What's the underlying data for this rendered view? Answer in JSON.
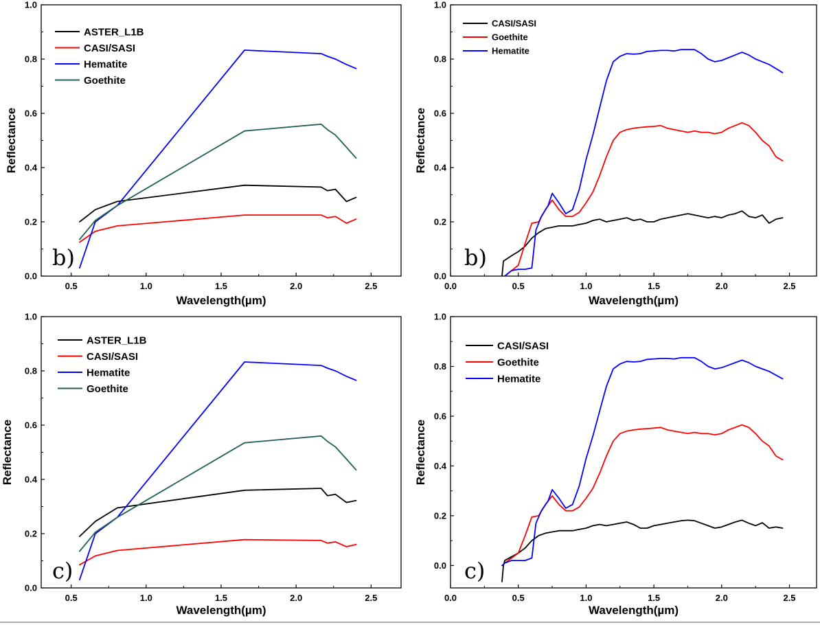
{
  "chart_data": [
    {
      "type": "line",
      "panel_label": "b)",
      "xlabel": "Wavelength(µm)",
      "ylabel": "Reflectance",
      "xlim": [
        0.3,
        2.7
      ],
      "ylim": [
        0.0,
        1.0
      ],
      "xticks": [
        "0.5",
        "1.0",
        "1.5",
        "2.0",
        "2.5"
      ],
      "yticks": [
        "0.0",
        "0.2",
        "0.4",
        "0.6",
        "0.8",
        "1.0"
      ],
      "grid": false,
      "legend": "top-left",
      "series": [
        {
          "name": "ASTER_L1B",
          "color": "#000000",
          "x": [
            0.556,
            0.661,
            0.807,
            1.656,
            2.167,
            2.209,
            2.262,
            2.336,
            2.4
          ],
          "y": [
            0.2,
            0.245,
            0.275,
            0.335,
            0.328,
            0.315,
            0.32,
            0.275,
            0.29
          ]
        },
        {
          "name": "CASI/SASI",
          "color": "#ff0000",
          "x": [
            0.556,
            0.661,
            0.807,
            1.656,
            2.167,
            2.209,
            2.262,
            2.336,
            2.4
          ],
          "y": [
            0.125,
            0.165,
            0.185,
            0.225,
            0.225,
            0.215,
            0.22,
            0.195,
            0.21
          ]
        },
        {
          "name": "Hematite",
          "color": "#0000ff",
          "x": [
            0.556,
            0.661,
            0.807,
            1.656,
            2.167,
            2.209,
            2.262,
            2.336,
            2.4
          ],
          "y": [
            0.03,
            0.2,
            0.26,
            0.833,
            0.82,
            0.81,
            0.8,
            0.78,
            0.765
          ]
        },
        {
          "name": "Goethite",
          "color": "#1f5f55",
          "x": [
            0.556,
            0.661,
            0.807,
            1.656,
            2.167,
            2.209,
            2.262,
            2.336,
            2.4
          ],
          "y": [
            0.135,
            0.205,
            0.26,
            0.535,
            0.56,
            0.54,
            0.52,
            0.475,
            0.435
          ]
        }
      ]
    },
    {
      "type": "line",
      "panel_label": "b)",
      "xlabel": "Wavelength(µm)",
      "ylabel": "Reflectance",
      "xlim": [
        0.0,
        2.7
      ],
      "ylim": [
        0.0,
        1.0
      ],
      "xticks": [
        "0.0",
        "0.5",
        "1.0",
        "1.5",
        "2.0",
        "2.5"
      ],
      "yticks": [
        "0.0",
        "0.2",
        "0.4",
        "0.6",
        "0.8",
        "1.0"
      ],
      "grid": false,
      "legend": "top-left",
      "series": [
        {
          "name": "CASI/SASI",
          "color": "#000000",
          "x": [
            0.38,
            0.39,
            0.45,
            0.5,
            0.55,
            0.6,
            0.65,
            0.7,
            0.75,
            0.8,
            0.85,
            0.9,
            0.95,
            1.0,
            1.05,
            1.1,
            1.15,
            1.2,
            1.25,
            1.3,
            1.35,
            1.4,
            1.45,
            1.5,
            1.55,
            1.6,
            1.65,
            1.7,
            1.75,
            1.8,
            1.85,
            1.9,
            1.95,
            2.0,
            2.05,
            2.1,
            2.15,
            2.2,
            2.25,
            2.3,
            2.35,
            2.4,
            2.45
          ],
          "y": [
            0.0,
            0.055,
            0.075,
            0.09,
            0.11,
            0.14,
            0.16,
            0.175,
            0.18,
            0.185,
            0.185,
            0.185,
            0.19,
            0.195,
            0.205,
            0.21,
            0.2,
            0.205,
            0.21,
            0.215,
            0.205,
            0.21,
            0.2,
            0.2,
            0.21,
            0.215,
            0.22,
            0.225,
            0.23,
            0.225,
            0.22,
            0.215,
            0.22,
            0.215,
            0.225,
            0.23,
            0.24,
            0.22,
            0.215,
            0.225,
            0.195,
            0.21,
            0.215
          ]
        },
        {
          "name": "Goethite",
          "color": "#ff0000",
          "x": [
            0.4,
            0.45,
            0.5,
            0.55,
            0.6,
            0.65,
            0.7,
            0.75,
            0.8,
            0.85,
            0.9,
            0.95,
            1.0,
            1.05,
            1.1,
            1.15,
            1.2,
            1.25,
            1.3,
            1.35,
            1.4,
            1.45,
            1.5,
            1.55,
            1.6,
            1.65,
            1.7,
            1.75,
            1.8,
            1.85,
            1.9,
            1.95,
            2.0,
            2.05,
            2.1,
            2.15,
            2.2,
            2.25,
            2.3,
            2.35,
            2.4,
            2.45
          ],
          "y": [
            0.0,
            0.02,
            0.04,
            0.12,
            0.195,
            0.2,
            0.245,
            0.28,
            0.245,
            0.22,
            0.22,
            0.235,
            0.27,
            0.31,
            0.37,
            0.44,
            0.5,
            0.53,
            0.54,
            0.545,
            0.548,
            0.55,
            0.552,
            0.555,
            0.545,
            0.54,
            0.535,
            0.53,
            0.535,
            0.53,
            0.53,
            0.525,
            0.53,
            0.545,
            0.555,
            0.565,
            0.555,
            0.53,
            0.5,
            0.48,
            0.44,
            0.425
          ]
        },
        {
          "name": "Hematite",
          "color": "#0000ff",
          "x": [
            0.4,
            0.45,
            0.5,
            0.55,
            0.6,
            0.63,
            0.67,
            0.72,
            0.75,
            0.8,
            0.85,
            0.9,
            0.95,
            1.0,
            1.05,
            1.1,
            1.15,
            1.2,
            1.25,
            1.3,
            1.35,
            1.4,
            1.45,
            1.5,
            1.55,
            1.6,
            1.65,
            1.7,
            1.75,
            1.8,
            1.85,
            1.9,
            1.95,
            2.0,
            2.05,
            2.1,
            2.15,
            2.2,
            2.25,
            2.3,
            2.35,
            2.4,
            2.45
          ],
          "y": [
            0.0,
            0.02,
            0.025,
            0.025,
            0.03,
            0.17,
            0.22,
            0.26,
            0.305,
            0.27,
            0.23,
            0.245,
            0.32,
            0.43,
            0.52,
            0.62,
            0.72,
            0.79,
            0.81,
            0.82,
            0.818,
            0.82,
            0.828,
            0.83,
            0.832,
            0.832,
            0.83,
            0.835,
            0.835,
            0.835,
            0.82,
            0.8,
            0.79,
            0.795,
            0.805,
            0.815,
            0.825,
            0.815,
            0.8,
            0.79,
            0.78,
            0.765,
            0.75
          ]
        }
      ]
    },
    {
      "type": "line",
      "panel_label": "c)",
      "xlabel": "Wavelength(µm)",
      "ylabel": "Reflectance",
      "xlim": [
        0.3,
        2.7
      ],
      "ylim": [
        0.0,
        1.0
      ],
      "xticks": [
        "0.5",
        "1.0",
        "1.5",
        "2.0",
        "2.5"
      ],
      "yticks": [
        "0.0",
        "0.2",
        "0.4",
        "0.6",
        "0.8",
        "1.0"
      ],
      "grid": false,
      "legend": "top-left",
      "series": [
        {
          "name": "ASTER_L1B",
          "color": "#000000",
          "x": [
            0.556,
            0.661,
            0.807,
            1.656,
            2.167,
            2.209,
            2.262,
            2.336,
            2.4
          ],
          "y": [
            0.19,
            0.245,
            0.295,
            0.36,
            0.367,
            0.34,
            0.345,
            0.315,
            0.322
          ]
        },
        {
          "name": "CASI/SASI",
          "color": "#ff0000",
          "x": [
            0.556,
            0.661,
            0.807,
            1.656,
            2.167,
            2.209,
            2.262,
            2.336,
            2.4
          ],
          "y": [
            0.085,
            0.118,
            0.138,
            0.178,
            0.175,
            0.165,
            0.17,
            0.152,
            0.16
          ]
        },
        {
          "name": "Hematite",
          "color": "#0000ff",
          "x": [
            0.556,
            0.661,
            0.807,
            1.656,
            2.167,
            2.209,
            2.262,
            2.336,
            2.4
          ],
          "y": [
            0.03,
            0.2,
            0.26,
            0.833,
            0.82,
            0.81,
            0.8,
            0.78,
            0.765
          ]
        },
        {
          "name": "Goethite",
          "color": "#1f5f55",
          "x": [
            0.556,
            0.661,
            0.807,
            1.656,
            2.167,
            2.209,
            2.262,
            2.336,
            2.4
          ],
          "y": [
            0.135,
            0.205,
            0.26,
            0.535,
            0.56,
            0.54,
            0.52,
            0.475,
            0.435
          ]
        }
      ]
    },
    {
      "type": "line",
      "panel_label": "c)",
      "xlabel": "Wavelength(µm)",
      "ylabel": "Reflectance",
      "xlim": [
        0.0,
        2.7
      ],
      "ylim": [
        -0.09,
        1.0
      ],
      "xticks": [
        "0.0",
        "0.5",
        "1.0",
        "1.5",
        "2.0",
        "2.5"
      ],
      "yticks": [
        "0.0",
        "0.2",
        "0.4",
        "0.6",
        "0.8",
        "1.0"
      ],
      "grid": false,
      "legend": "top-left",
      "series": [
        {
          "name": "CASI/SASI",
          "color": "#000000",
          "x": [
            0.38,
            0.39,
            0.4,
            0.45,
            0.5,
            0.55,
            0.6,
            0.65,
            0.7,
            0.75,
            0.8,
            0.85,
            0.9,
            0.95,
            1.0,
            1.05,
            1.1,
            1.15,
            1.2,
            1.25,
            1.3,
            1.35,
            1.4,
            1.45,
            1.5,
            1.55,
            1.6,
            1.65,
            1.7,
            1.75,
            1.8,
            1.85,
            1.9,
            1.95,
            2.0,
            2.05,
            2.1,
            2.15,
            2.2,
            2.25,
            2.3,
            2.35,
            2.4,
            2.45
          ],
          "y": [
            -0.065,
            0.0,
            0.02,
            0.035,
            0.05,
            0.07,
            0.1,
            0.12,
            0.13,
            0.135,
            0.14,
            0.14,
            0.14,
            0.145,
            0.15,
            0.16,
            0.165,
            0.16,
            0.165,
            0.17,
            0.175,
            0.165,
            0.15,
            0.15,
            0.16,
            0.165,
            0.17,
            0.175,
            0.18,
            0.182,
            0.18,
            0.17,
            0.16,
            0.15,
            0.155,
            0.165,
            0.175,
            0.182,
            0.17,
            0.16,
            0.172,
            0.15,
            0.155,
            0.15
          ]
        },
        {
          "name": "Goethite",
          "color": "#ff0000",
          "x": [
            0.4,
            0.45,
            0.5,
            0.55,
            0.6,
            0.65,
            0.7,
            0.75,
            0.8,
            0.85,
            0.9,
            0.95,
            1.0,
            1.05,
            1.1,
            1.15,
            1.2,
            1.25,
            1.3,
            1.35,
            1.4,
            1.45,
            1.5,
            1.55,
            1.6,
            1.65,
            1.7,
            1.75,
            1.8,
            1.85,
            1.9,
            1.95,
            2.0,
            2.05,
            2.1,
            2.15,
            2.2,
            2.25,
            2.3,
            2.35,
            2.4,
            2.45
          ],
          "y": [
            0.01,
            0.03,
            0.05,
            0.12,
            0.195,
            0.2,
            0.245,
            0.28,
            0.245,
            0.22,
            0.22,
            0.235,
            0.27,
            0.31,
            0.37,
            0.44,
            0.5,
            0.53,
            0.54,
            0.545,
            0.548,
            0.55,
            0.552,
            0.555,
            0.545,
            0.54,
            0.535,
            0.53,
            0.535,
            0.53,
            0.53,
            0.525,
            0.53,
            0.545,
            0.555,
            0.565,
            0.555,
            0.53,
            0.5,
            0.48,
            0.44,
            0.425
          ]
        },
        {
          "name": "Hematite",
          "color": "#0000ff",
          "x": [
            0.38,
            0.4,
            0.45,
            0.5,
            0.55,
            0.6,
            0.63,
            0.67,
            0.72,
            0.75,
            0.8,
            0.85,
            0.9,
            0.95,
            1.0,
            1.05,
            1.1,
            1.15,
            1.2,
            1.25,
            1.3,
            1.35,
            1.4,
            1.45,
            1.5,
            1.55,
            1.6,
            1.65,
            1.7,
            1.75,
            1.8,
            1.85,
            1.9,
            1.95,
            2.0,
            2.05,
            2.1,
            2.15,
            2.2,
            2.25,
            2.3,
            2.35,
            2.4,
            2.45
          ],
          "y": [
            0.0,
            0.01,
            0.02,
            0.02,
            0.02,
            0.03,
            0.17,
            0.22,
            0.26,
            0.305,
            0.27,
            0.23,
            0.245,
            0.32,
            0.43,
            0.52,
            0.62,
            0.72,
            0.79,
            0.81,
            0.82,
            0.818,
            0.82,
            0.828,
            0.83,
            0.832,
            0.832,
            0.83,
            0.835,
            0.835,
            0.835,
            0.82,
            0.8,
            0.79,
            0.795,
            0.805,
            0.815,
            0.825,
            0.815,
            0.8,
            0.79,
            0.78,
            0.765,
            0.75
          ]
        }
      ]
    }
  ]
}
